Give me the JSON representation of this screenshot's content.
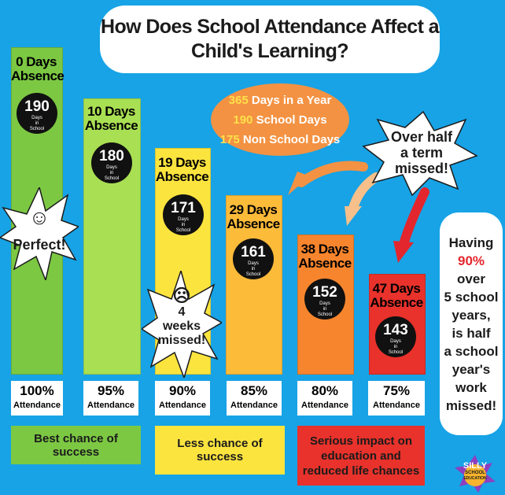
{
  "title": {
    "line1": "How Does School Attendance Affect a",
    "line2": "Child's Learning?"
  },
  "oval": [
    {
      "num": "365",
      "text": " Days in a Year"
    },
    {
      "num": "190",
      "text": " School Days"
    },
    {
      "num": "175",
      "text": " Non School Days"
    }
  ],
  "callout": {
    "line1": "Over half",
    "line2": "a term",
    "line3": "missed!"
  },
  "bars": [
    {
      "absence_num": "0 Days",
      "absence_word": "Absence",
      "days": "190",
      "days_sub1": "Days",
      "days_sub2": "in",
      "days_sub3": "School",
      "pct": "100%",
      "att": "Attendance",
      "color": "#7cc843"
    },
    {
      "absence_num": "10 Days",
      "absence_word": "Absence",
      "days": "180",
      "days_sub1": "Days",
      "days_sub2": "in",
      "days_sub3": "School",
      "pct": "95%",
      "att": "Attendance",
      "color": "#a9e053"
    },
    {
      "absence_num": "19 Days",
      "absence_word": "Absence",
      "days": "171",
      "days_sub1": "Days",
      "days_sub2": "in",
      "days_sub3": "School",
      "pct": "90%",
      "att": "Attendance",
      "color": "#fce43f"
    },
    {
      "absence_num": "29 Days",
      "absence_word": "Absence",
      "days": "161",
      "days_sub1": "Days",
      "days_sub2": "in",
      "days_sub3": "School",
      "pct": "85%",
      "att": "Attendance",
      "color": "#fdbb3a"
    },
    {
      "absence_num": "38 Days",
      "absence_word": "Absence",
      "days": "152",
      "days_sub1": "Days",
      "days_sub2": "in",
      "days_sub3": "School",
      "pct": "80%",
      "att": "Attendance",
      "color": "#f7852d"
    },
    {
      "absence_num": "47 Days",
      "absence_word": "Absence",
      "days": "143",
      "days_sub1": "Days",
      "days_sub2": "in",
      "days_sub3": "School",
      "pct": "75%",
      "att": "Attendance",
      "color": "#e8322b"
    }
  ],
  "burst_perfect": {
    "face": "☺",
    "text": "Perfect!"
  },
  "burst_weeks": {
    "face": "☹",
    "line1": "4",
    "line2": "weeks",
    "line3": "missed!"
  },
  "side_box": {
    "l1": "Having",
    "l2": "90%",
    "l3": "over",
    "l4": "5 school",
    "l5": "years,",
    "l6": "is half",
    "l7": "a school",
    "l8": "year's",
    "l9": "work",
    "l10": "missed!"
  },
  "bottom": {
    "green": "Best chance of success",
    "yellow": "Less chance of success",
    "red_l1": "Serious impact on",
    "red_l2": "education and",
    "red_l3": "reduced life chances"
  },
  "logo": {
    "l1": "SILLY",
    "l2": "SCHOOL",
    "l3": "EDUCATION"
  },
  "colors": {
    "background": "#17a3e6",
    "oval": "#f39242",
    "highlight": "#e3262d",
    "bottom_green": "#7cc843",
    "bottom_yellow": "#fce43f",
    "bottom_red": "#e8322b"
  }
}
